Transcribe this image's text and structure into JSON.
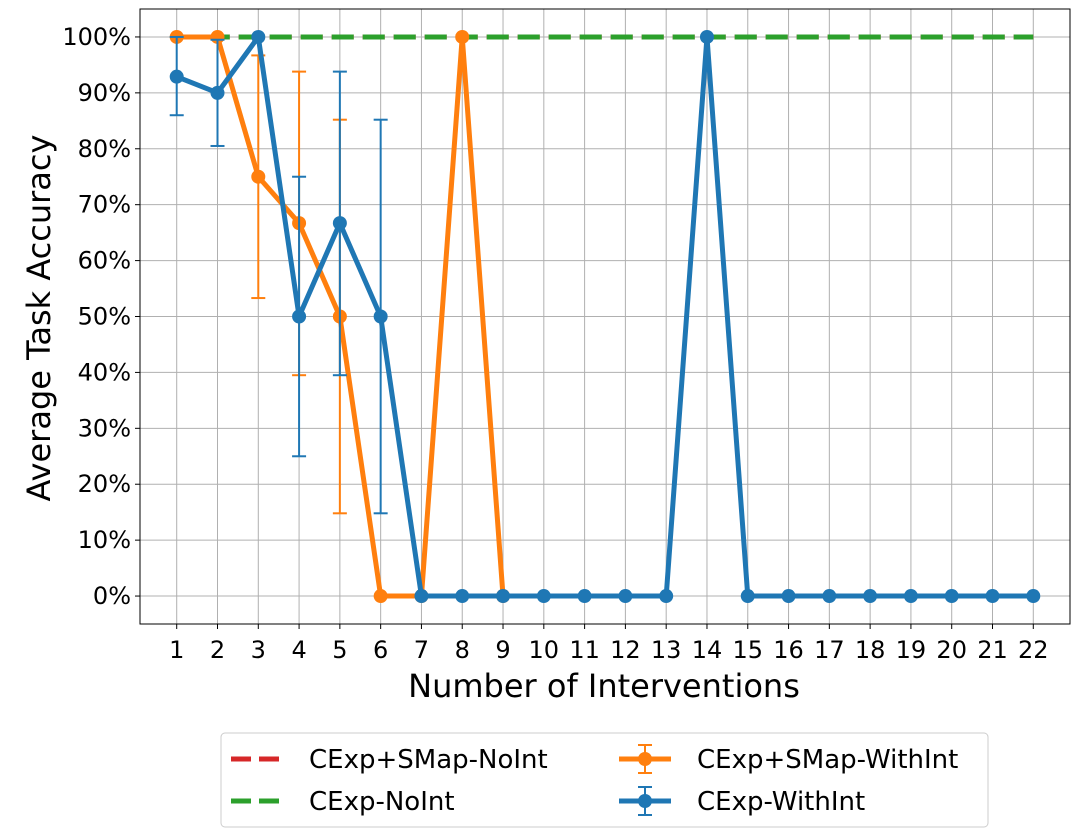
{
  "chart_data": {
    "type": "line",
    "title": "",
    "xlabel": "Number of Interventions",
    "ylabel": "Average Task Accuracy",
    "x": [
      1,
      2,
      3,
      4,
      5,
      6,
      7,
      8,
      9,
      10,
      11,
      12,
      13,
      14,
      15,
      16,
      17,
      18,
      19,
      20,
      21,
      22
    ],
    "x_tick_labels": [
      "1",
      "2",
      "3",
      "4",
      "5",
      "6",
      "7",
      "8",
      "9",
      "10",
      "11",
      "12",
      "13",
      "14",
      "15",
      "16",
      "17",
      "18",
      "19",
      "20",
      "21",
      "22"
    ],
    "y_tick_labels": [
      "0%",
      "10%",
      "20%",
      "30%",
      "40%",
      "50%",
      "60%",
      "70%",
      "80%",
      "90%",
      "100%"
    ],
    "ylim": [
      -0.05,
      1.05
    ],
    "xlim": [
      0.1,
      22.9
    ],
    "grid": true,
    "legend_position": "bottom-center",
    "series": [
      {
        "name": "CExp+SMap-NoInt",
        "style": "dashed",
        "color": "#d62728",
        "x": [
          1,
          22
        ],
        "y": [
          1.0,
          1.0
        ]
      },
      {
        "name": "CExp-NoInt",
        "style": "dashed",
        "color": "#2ca02c",
        "x": [
          1,
          22
        ],
        "y": [
          1.0,
          1.0
        ]
      },
      {
        "name": "CExp+SMap-WithInt",
        "style": "solid-marker-errorbar",
        "color": "#ff7f0e",
        "x": [
          1,
          2,
          3,
          4,
          5,
          6,
          7,
          8,
          9
        ],
        "y": [
          1.0,
          1.0,
          0.75,
          0.667,
          0.5,
          0.0,
          0.0,
          1.0,
          0.0
        ],
        "err_low": [
          1.0,
          1.0,
          0.533,
          0.395,
          0.148,
          0.0,
          0.0,
          1.0,
          0.0
        ],
        "err_high": [
          1.0,
          1.0,
          0.967,
          0.938,
          0.852,
          0.0,
          0.0,
          1.0,
          0.0
        ]
      },
      {
        "name": "CExp-WithInt",
        "style": "solid-marker-errorbar",
        "color": "#1f77b4",
        "x": [
          1,
          2,
          3,
          4,
          5,
          6,
          7,
          8,
          9,
          10,
          11,
          12,
          13,
          14,
          15,
          16,
          17,
          18,
          19,
          20,
          21,
          22
        ],
        "y": [
          0.929,
          0.9,
          1.0,
          0.5,
          0.667,
          0.5,
          0.0,
          0.0,
          0.0,
          0.0,
          0.0,
          0.0,
          0.0,
          1.0,
          0.0,
          0.0,
          0.0,
          0.0,
          0.0,
          0.0,
          0.0,
          0.0
        ],
        "err_low": [
          0.86,
          0.805,
          1.0,
          0.25,
          0.395,
          0.148,
          0.0,
          0.0,
          0.0,
          0.0,
          0.0,
          0.0,
          0.0,
          1.0,
          0.0,
          0.0,
          0.0,
          0.0,
          0.0,
          0.0,
          0.0,
          0.0
        ],
        "err_high": [
          1.0,
          0.995,
          1.0,
          0.75,
          0.938,
          0.852,
          0.0,
          0.0,
          0.0,
          0.0,
          0.0,
          0.0,
          0.0,
          1.0,
          0.0,
          0.0,
          0.0,
          0.0,
          0.0,
          0.0,
          0.0,
          0.0
        ]
      }
    ],
    "legend": [
      {
        "label": "CExp+SMap-NoInt",
        "series": 0
      },
      {
        "label": "CExp+SMap-WithInt",
        "series": 2
      },
      {
        "label": "CExp-NoInt",
        "series": 1
      },
      {
        "label": "CExp-WithInt",
        "series": 3
      }
    ]
  }
}
